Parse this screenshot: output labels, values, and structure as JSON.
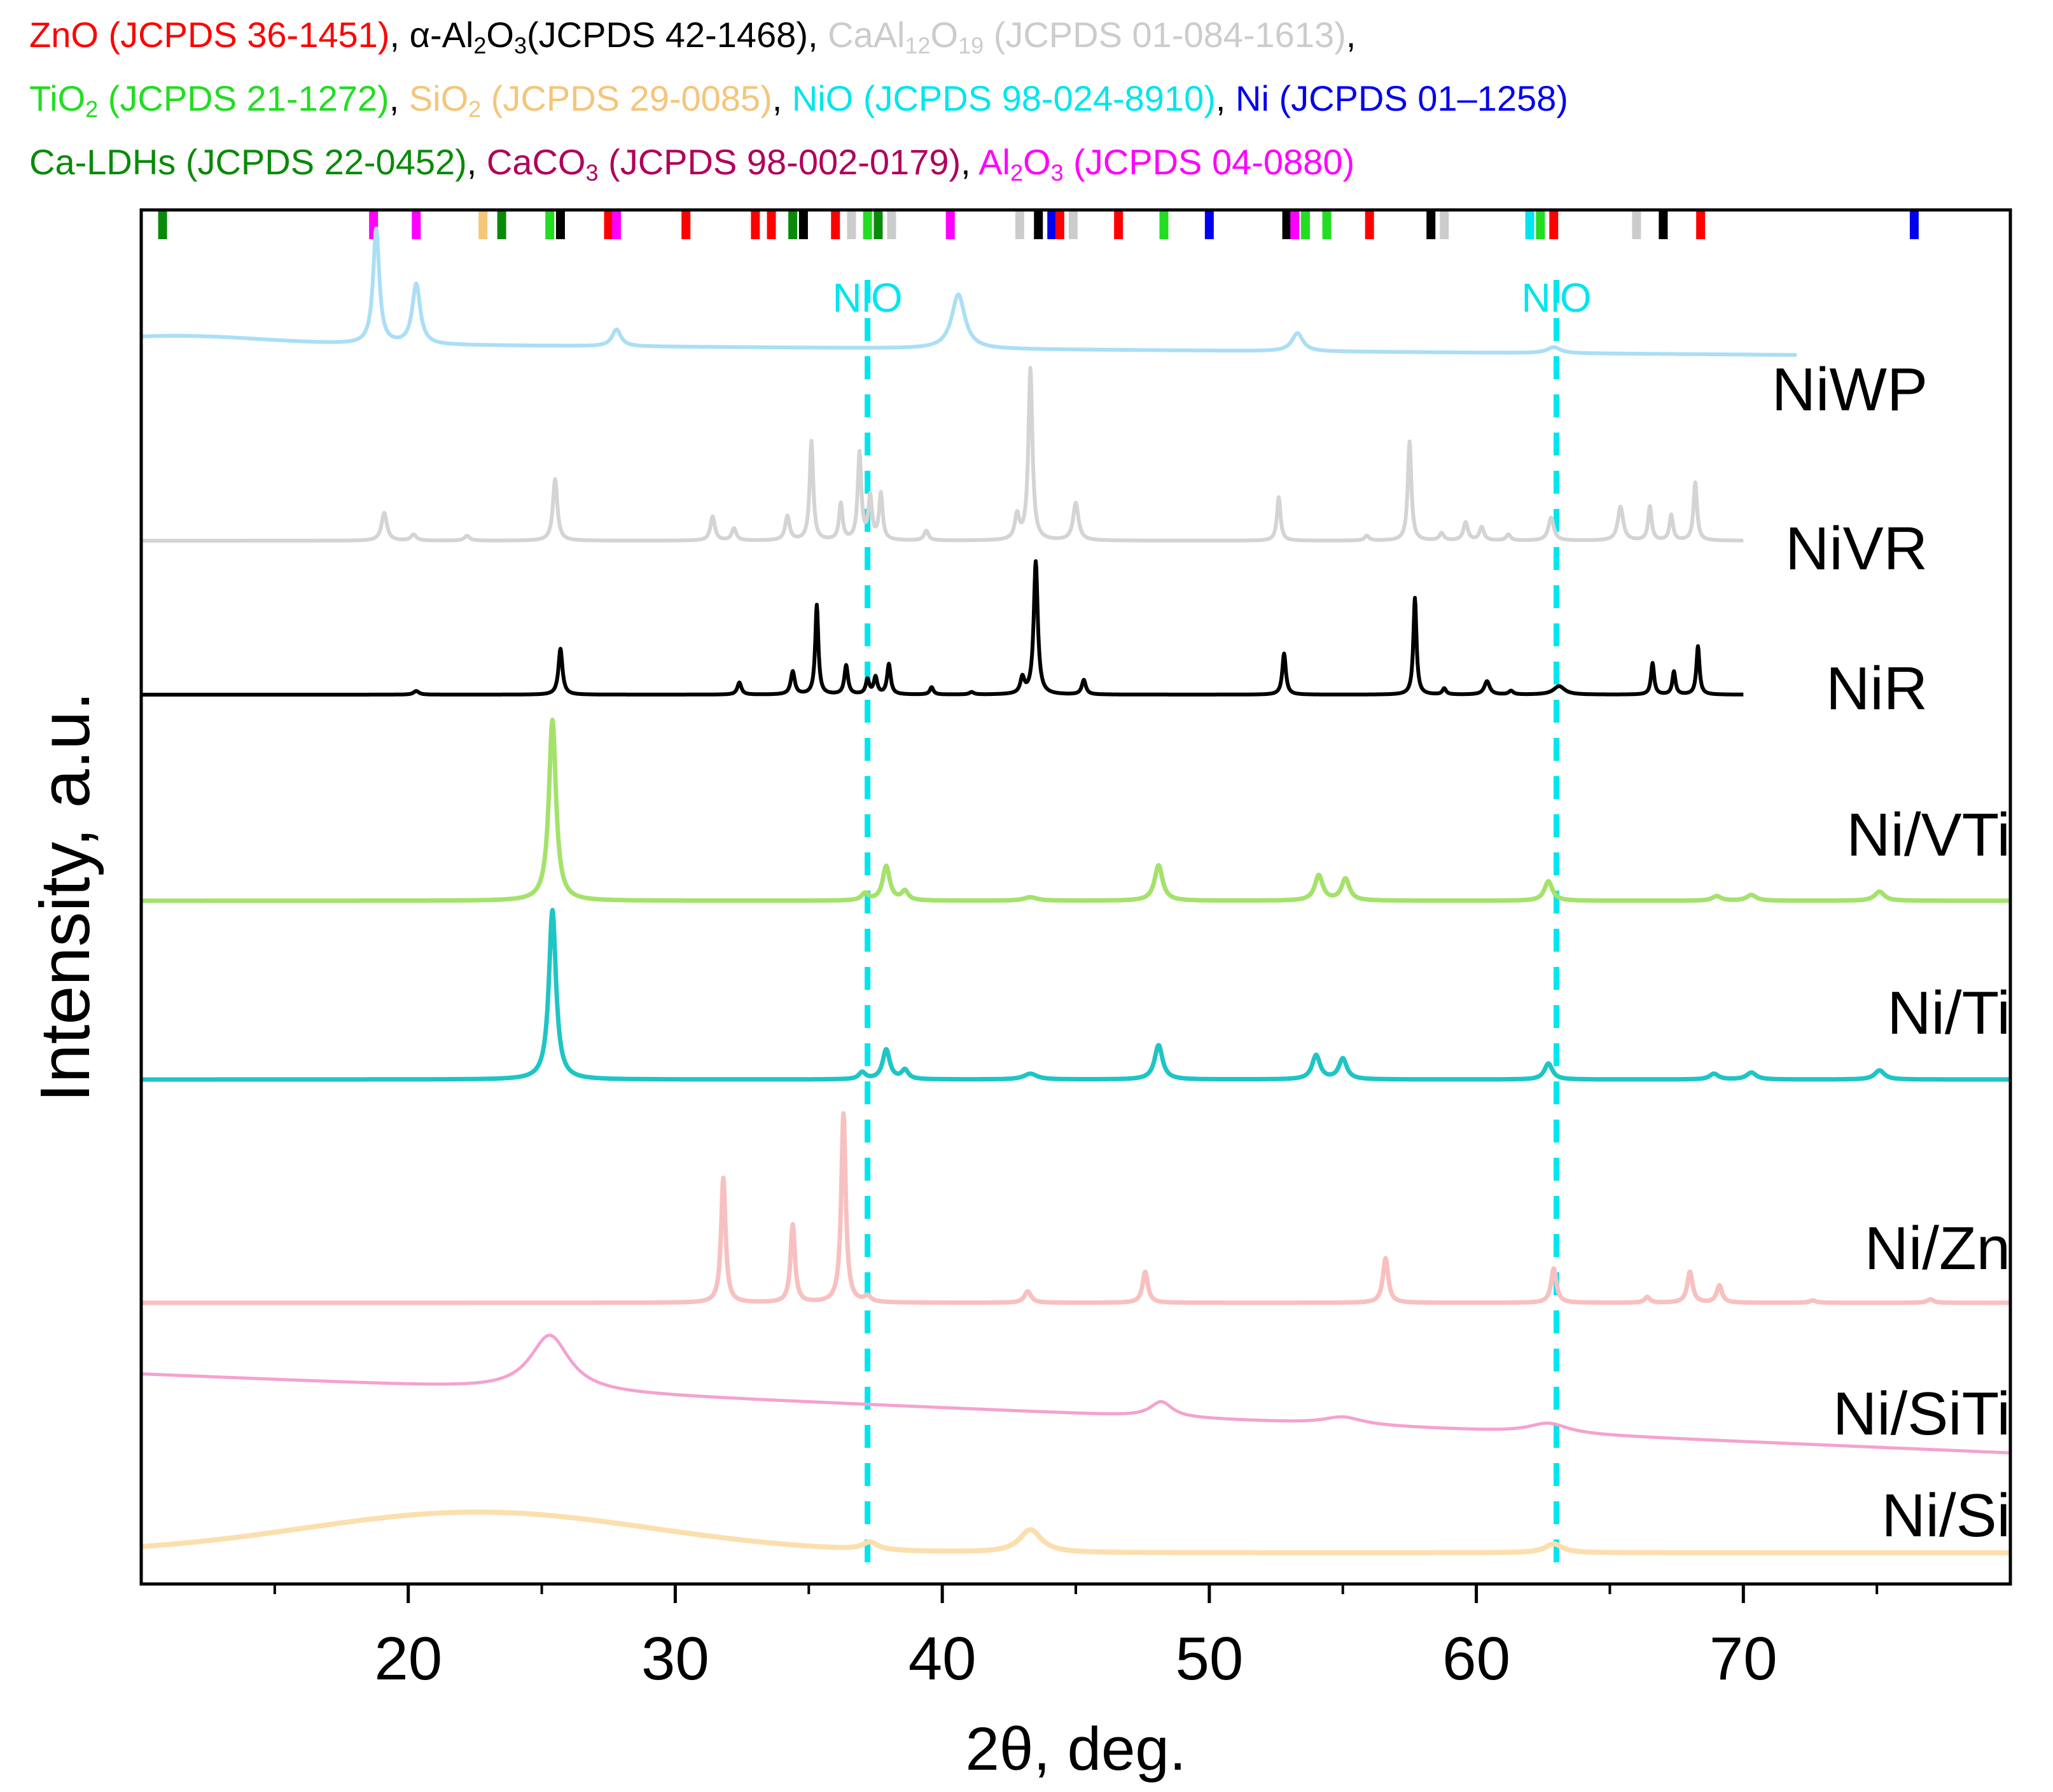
{
  "legend": {
    "lines": [
      [
        {
          "main": "ZnO (JCPDS 36-1451)",
          "color": "#ff0000",
          "sep": ", "
        },
        {
          "pre": "α-Al",
          "sub1": "2",
          "mid": "O",
          "sub2": "3",
          "post": "(JCPDS 42-1468)",
          "color": "#000000",
          "sep": ", "
        },
        {
          "pre": "CaAl",
          "sub1": "12",
          "mid": "O",
          "sub2": "19",
          "post": " (JCPDS 01-084-1613)",
          "color": "#cccccc",
          "sep": ","
        }
      ],
      [
        {
          "pre": "TiO",
          "sub1": "2",
          "post": " (JCPDS 21-1272)",
          "color": "#22dd22",
          "sep": ", "
        },
        {
          "pre": "SiO",
          "sub1": "2",
          "post": " (JCPDS 29-0085)",
          "color": "#f5c57a",
          "sep": ", "
        },
        {
          "main": "NiO (JCPDS 98-024-8910)",
          "color": "#00e5ee",
          "sep": ", "
        },
        {
          "main": "Ni (JCPDS 01–1258)",
          "color": "#0000ee",
          "sep": ""
        }
      ],
      [
        {
          "main": "Ca-LDHs (JCPDS 22-0452)",
          "color": "#0a8a0a",
          "sep": ", "
        },
        {
          "pre": "CaCO",
          "sub1": "3",
          "post": " (JCPDS 98-002-0179)",
          "color": "#b0005a",
          "sep": ", "
        },
        {
          "pre": "Al",
          "sub1": "2",
          "mid": "O",
          "sub2": "3",
          "post": " (JCPDS 04-0880)",
          "color": "#ff00ff",
          "sep": ""
        }
      ]
    ]
  },
  "chart_data": {
    "type": "line",
    "title": "",
    "xlabel": "2θ, deg.",
    "ylabel": "Intensity, a.u.",
    "xlim": [
      10,
      80
    ],
    "xticks": [
      20,
      30,
      40,
      50,
      60,
      70
    ],
    "reference_lines": [
      {
        "x": 37.2,
        "label": "NiO",
        "color": "#00e5ee"
      },
      {
        "x": 63.0,
        "label": "NiO",
        "color": "#00e5ee"
      }
    ],
    "reference_ticks": [
      {
        "x": 10.8,
        "color": "#0a8a0a"
      },
      {
        "x": 18.7,
        "color": "#ff00ff"
      },
      {
        "x": 20.3,
        "color": "#ff00ff"
      },
      {
        "x": 22.8,
        "color": "#f5c57a"
      },
      {
        "x": 23.5,
        "color": "#0a8a0a"
      },
      {
        "x": 25.3,
        "color": "#22dd22"
      },
      {
        "x": 25.7,
        "color": "#000000"
      },
      {
        "x": 27.5,
        "color": "#ff0000"
      },
      {
        "x": 27.8,
        "color": "#ff00ff"
      },
      {
        "x": 30.4,
        "color": "#ff0000"
      },
      {
        "x": 33.0,
        "color": "#ff0000"
      },
      {
        "x": 33.6,
        "color": "#ff0000"
      },
      {
        "x": 34.4,
        "color": "#0a8a0a"
      },
      {
        "x": 34.8,
        "color": "#000000"
      },
      {
        "x": 36.0,
        "color": "#ff0000"
      },
      {
        "x": 36.6,
        "color": "#cccccc"
      },
      {
        "x": 37.2,
        "color": "#22dd22"
      },
      {
        "x": 37.6,
        "color": "#0a8a0a"
      },
      {
        "x": 38.1,
        "color": "#cccccc"
      },
      {
        "x": 40.3,
        "color": "#ff00ff"
      },
      {
        "x": 42.9,
        "color": "#cccccc"
      },
      {
        "x": 43.6,
        "color": "#000000"
      },
      {
        "x": 44.1,
        "color": "#0000ee"
      },
      {
        "x": 44.4,
        "color": "#ff0000"
      },
      {
        "x": 44.9,
        "color": "#cccccc"
      },
      {
        "x": 46.6,
        "color": "#ff0000"
      },
      {
        "x": 48.3,
        "color": "#22dd22"
      },
      {
        "x": 50.0,
        "color": "#0000ee"
      },
      {
        "x": 52.9,
        "color": "#000000"
      },
      {
        "x": 53.2,
        "color": "#ff00ff"
      },
      {
        "x": 53.6,
        "color": "#22dd22"
      },
      {
        "x": 54.4,
        "color": "#22dd22"
      },
      {
        "x": 56.0,
        "color": "#ff0000"
      },
      {
        "x": 58.3,
        "color": "#000000"
      },
      {
        "x": 58.8,
        "color": "#cccccc"
      },
      {
        "x": 62.0,
        "color": "#00e5ee"
      },
      {
        "x": 62.4,
        "color": "#22dd22"
      },
      {
        "x": 62.9,
        "color": "#ff0000"
      },
      {
        "x": 66.0,
        "color": "#cccccc"
      },
      {
        "x": 67.0,
        "color": "#000000"
      },
      {
        "x": 68.4,
        "color": "#ff0000"
      },
      {
        "x": 76.4,
        "color": "#0000ee"
      }
    ],
    "series": [
      {
        "name": "NiWP",
        "color": "#aadff5",
        "x_end": 72,
        "base_start": 1.0,
        "base_end": 0.0,
        "peaks": [
          [
            18.8,
            9.5,
            0.14
          ],
          [
            20.3,
            5.0,
            0.18
          ],
          [
            27.8,
            1.4,
            0.2
          ],
          [
            40.6,
            4.5,
            0.3
          ],
          [
            53.3,
            1.5,
            0.25
          ],
          [
            62.9,
            0.5,
            0.3
          ]
        ],
        "humps": [
          [
            11.5,
            0.6,
            3.0
          ]
        ]
      },
      {
        "name": "NiVR",
        "color": "#d4d4d4",
        "x_end": 70,
        "base_start": 0.0,
        "base_end": 0.0,
        "peaks": [
          [
            19.1,
            2.3,
            0.12
          ],
          [
            20.2,
            0.5,
            0.12
          ],
          [
            22.2,
            0.4,
            0.12
          ],
          [
            25.5,
            5.1,
            0.1
          ],
          [
            31.4,
            2.0,
            0.1
          ],
          [
            32.2,
            1.0,
            0.1
          ],
          [
            34.2,
            2.0,
            0.1
          ],
          [
            35.1,
            8.2,
            0.08
          ],
          [
            36.2,
            3.0,
            0.08
          ],
          [
            36.9,
            7.2,
            0.08
          ],
          [
            37.3,
            3.5,
            0.08
          ],
          [
            37.7,
            3.8,
            0.08
          ],
          [
            39.4,
            0.8,
            0.1
          ],
          [
            42.8,
            2.0,
            0.1
          ],
          [
            43.3,
            14.2,
            0.09
          ],
          [
            45.0,
            3.1,
            0.12
          ],
          [
            52.6,
            3.6,
            0.08
          ],
          [
            55.9,
            0.4,
            0.1
          ],
          [
            57.5,
            8.2,
            0.08
          ],
          [
            58.7,
            0.6,
            0.1
          ],
          [
            59.6,
            1.5,
            0.1
          ],
          [
            60.2,
            1.1,
            0.1
          ],
          [
            61.2,
            0.5,
            0.1
          ],
          [
            62.8,
            1.9,
            0.12
          ],
          [
            65.4,
            2.8,
            0.12
          ],
          [
            66.5,
            2.8,
            0.08
          ],
          [
            67.3,
            2.1,
            0.08
          ],
          [
            68.2,
            4.8,
            0.08
          ]
        ],
        "humps": []
      },
      {
        "name": "NiR",
        "color": "#000000",
        "x_end": 70,
        "base_start": 0.0,
        "base_end": 0.0,
        "peaks": [
          [
            20.3,
            0.3,
            0.12
          ],
          [
            25.7,
            3.8,
            0.09
          ],
          [
            32.4,
            1.0,
            0.09
          ],
          [
            34.4,
            1.9,
            0.09
          ],
          [
            35.3,
            7.4,
            0.07
          ],
          [
            36.4,
            2.4,
            0.08
          ],
          [
            37.2,
            1.2,
            0.08
          ],
          [
            37.5,
            1.4,
            0.08
          ],
          [
            38.0,
            2.5,
            0.08
          ],
          [
            39.6,
            0.6,
            0.08
          ],
          [
            41.1,
            0.2,
            0.1
          ],
          [
            43.0,
            1.3,
            0.09
          ],
          [
            43.5,
            11.0,
            0.09
          ],
          [
            45.3,
            1.2,
            0.09
          ],
          [
            52.8,
            3.4,
            0.08
          ],
          [
            57.7,
            8.0,
            0.07
          ],
          [
            58.8,
            0.5,
            0.08
          ],
          [
            60.4,
            1.1,
            0.12
          ],
          [
            61.3,
            0.3,
            0.1
          ],
          [
            63.1,
            0.7,
            0.25
          ],
          [
            66.6,
            2.6,
            0.07
          ],
          [
            67.4,
            1.9,
            0.07
          ],
          [
            68.3,
            4.0,
            0.07
          ]
        ],
        "humps": []
      },
      {
        "name": "Ni/VTi",
        "color": "#a4e26b",
        "x_end": 80,
        "base_start": 0.0,
        "base_end": 0.0,
        "peaks": [
          [
            25.4,
            15.8,
            0.16
          ],
          [
            37.1,
            0.6,
            0.15
          ],
          [
            37.9,
            3.0,
            0.16
          ],
          [
            38.6,
            0.8,
            0.15
          ],
          [
            43.3,
            0.3,
            0.3
          ],
          [
            48.1,
            3.1,
            0.18
          ],
          [
            54.1,
            2.2,
            0.18
          ],
          [
            55.1,
            1.9,
            0.18
          ],
          [
            62.7,
            1.7,
            0.18
          ],
          [
            69.0,
            0.4,
            0.2
          ],
          [
            70.3,
            0.5,
            0.22
          ],
          [
            75.1,
            0.8,
            0.22
          ]
        ],
        "humps": []
      },
      {
        "name": "Ni/Ti",
        "color": "#1ec5c5",
        "x_end": 80,
        "base_start": 0.0,
        "base_end": 0.0,
        "peaks": [
          [
            25.4,
            14.8,
            0.16
          ],
          [
            37.0,
            0.6,
            0.15
          ],
          [
            37.9,
            2.6,
            0.16
          ],
          [
            38.6,
            0.8,
            0.15
          ],
          [
            43.3,
            0.5,
            0.3
          ],
          [
            48.1,
            3.0,
            0.18
          ],
          [
            54.0,
            2.1,
            0.18
          ],
          [
            55.0,
            1.8,
            0.18
          ],
          [
            62.7,
            1.4,
            0.18
          ],
          [
            68.9,
            0.5,
            0.2
          ],
          [
            70.3,
            0.6,
            0.22
          ],
          [
            75.1,
            0.8,
            0.22
          ]
        ],
        "humps": []
      },
      {
        "name": "Ni/Zn",
        "color": "#f8c0c0",
        "x_end": 80,
        "base_start": 0.0,
        "base_end": 0.0,
        "peaks": [
          [
            31.8,
            10.9,
            0.1
          ],
          [
            34.4,
            6.8,
            0.1
          ],
          [
            36.3,
            16.5,
            0.1
          ],
          [
            37.2,
            0.5,
            0.15
          ],
          [
            43.2,
            1.0,
            0.15
          ],
          [
            47.6,
            2.7,
            0.12
          ],
          [
            56.6,
            3.9,
            0.12
          ],
          [
            62.9,
            3.0,
            0.12
          ],
          [
            66.4,
            0.5,
            0.12
          ],
          [
            68.0,
            2.7,
            0.12
          ],
          [
            69.1,
            1.5,
            0.12
          ],
          [
            72.6,
            0.2,
            0.15
          ],
          [
            77.0,
            0.3,
            0.15
          ]
        ],
        "humps": []
      },
      {
        "name": "Ni/SiTi",
        "color": "#f4a2cf",
        "x_end": 80,
        "base_start": 6.2,
        "base_end": 0.0,
        "peaks": [
          [
            25.3,
            4.4,
            0.9
          ],
          [
            48.2,
            1.2,
            0.5
          ],
          [
            55.0,
            0.6,
            0.9
          ],
          [
            62.7,
            0.8,
            0.9
          ]
        ],
        "humps": []
      },
      {
        "name": "Ni/Si",
        "color": "#fbdfae",
        "x_end": 80,
        "base_start": 0.0,
        "base_end": 0.0,
        "peaks": [
          [
            37.3,
            0.6,
            0.35
          ],
          [
            43.3,
            1.8,
            0.5
          ],
          [
            62.9,
            0.7,
            0.4
          ]
        ],
        "humps": [
          [
            22.6,
            3.2,
            6.5
          ]
        ]
      }
    ]
  }
}
